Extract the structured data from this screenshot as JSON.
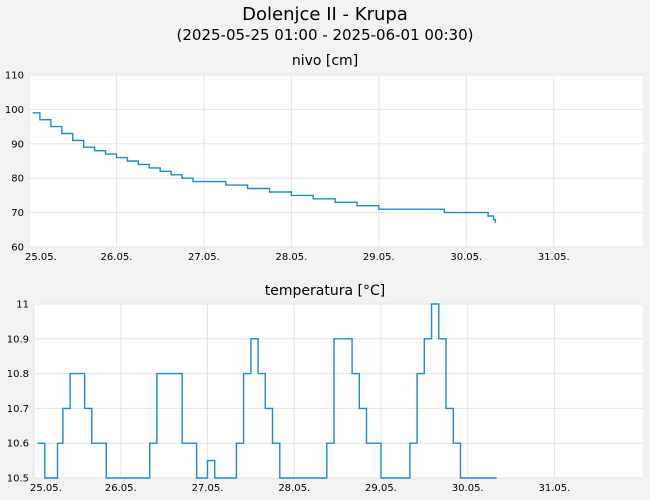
{
  "header": {
    "title": "Dolenjce II - Krupa",
    "subtitle": "(2025-05-25 01:00 - 2025-06-01 00:30)"
  },
  "colors": {
    "line": "#1a8ad4",
    "background": "#f2f2f2",
    "plot_background": "#ffffff",
    "grid": "#e6e6e6"
  },
  "chart_data": [
    {
      "type": "line",
      "title": "nivo [cm]",
      "xlabel": "",
      "ylabel": "",
      "x_range": [
        "2025-05-25 00:00",
        "2025-06-01 00:30"
      ],
      "ylim": [
        60,
        110
      ],
      "yticks": [
        "60",
        "70",
        "80",
        "90",
        "100",
        "110"
      ],
      "xticks": [
        "25.05.",
        "26.05.",
        "27.05.",
        "28.05.",
        "29.05.",
        "30.05.",
        "31.05."
      ],
      "grid": true,
      "series": [
        {
          "x": [
            "2025-05-25 01:00",
            "2025-05-25 03:00",
            "2025-05-25 06:00",
            "2025-05-25 09:00",
            "2025-05-25 12:00",
            "2025-05-25 15:00",
            "2025-05-25 18:00",
            "2025-05-25 21:00",
            "2025-05-26 00:00",
            "2025-05-26 03:00",
            "2025-05-26 06:00",
            "2025-05-26 09:00",
            "2025-05-26 12:00",
            "2025-05-26 15:00",
            "2025-05-26 18:00",
            "2025-05-26 21:00",
            "2025-05-27 00:00",
            "2025-05-27 06:00",
            "2025-05-27 12:00",
            "2025-05-27 18:00",
            "2025-05-28 00:00",
            "2025-05-28 06:00",
            "2025-05-28 12:00",
            "2025-05-28 18:00",
            "2025-05-29 00:00",
            "2025-05-29 06:00",
            "2025-05-29 12:00",
            "2025-05-29 18:00",
            "2025-05-30 00:00",
            "2025-05-30 06:00",
            "2025-05-30 07:30",
            "2025-05-30 08:00"
          ],
          "y": [
            99,
            97,
            95,
            93,
            91,
            89,
            88,
            87,
            86,
            85,
            84,
            83,
            82,
            81,
            80,
            79,
            79,
            78,
            77,
            76,
            75,
            74,
            73,
            72,
            71,
            71,
            71,
            70,
            70,
            69,
            68,
            67
          ]
        }
      ]
    },
    {
      "type": "line",
      "title": "temperatura [°C]",
      "xlabel": "",
      "ylabel": "",
      "x_range": [
        "2025-05-25 00:00",
        "2025-06-01 00:30"
      ],
      "ylim": [
        10.5,
        11
      ],
      "yticks": [
        "10.5",
        "10.6",
        "10.7",
        "10.8",
        "10.9",
        "11"
      ],
      "xticks": [
        "25.05.",
        "26.05.",
        "27.05.",
        "28.05.",
        "29.05.",
        "30.05.",
        "31.05."
      ],
      "grid": true,
      "series": [
        {
          "x": [
            "2025-05-25 01:00",
            "2025-05-25 03:00",
            "2025-05-25 05:00",
            "2025-05-25 06:30",
            "2025-05-25 08:00",
            "2025-05-25 10:00",
            "2025-05-25 12:00",
            "2025-05-25 14:00",
            "2025-05-25 16:00",
            "2025-05-25 18:00",
            "2025-05-25 20:00",
            "2025-05-26 00:00",
            "2025-05-26 06:00",
            "2025-05-26 08:00",
            "2025-05-26 10:00",
            "2025-05-26 15:00",
            "2025-05-26 17:00",
            "2025-05-26 19:00",
            "2025-05-26 21:00",
            "2025-05-27 00:00",
            "2025-05-27 02:00",
            "2025-05-27 04:00",
            "2025-05-27 06:00",
            "2025-05-27 08:00",
            "2025-05-27 10:00",
            "2025-05-27 12:00",
            "2025-05-27 14:00",
            "2025-05-27 16:00",
            "2025-05-27 18:00",
            "2025-05-27 20:00",
            "2025-05-28 00:00",
            "2025-05-28 06:00",
            "2025-05-28 09:00",
            "2025-05-28 11:00",
            "2025-05-28 14:00",
            "2025-05-28 16:00",
            "2025-05-28 18:00",
            "2025-05-28 20:00",
            "2025-05-29 00:00",
            "2025-05-29 06:00",
            "2025-05-29 08:00",
            "2025-05-29 10:00",
            "2025-05-29 12:00",
            "2025-05-29 14:00",
            "2025-05-29 16:00",
            "2025-05-29 18:00",
            "2025-05-29 20:00",
            "2025-05-29 22:00",
            "2025-05-30 00:00",
            "2025-05-30 08:00"
          ],
          "y": [
            10.6,
            10.5,
            10.5,
            10.6,
            10.7,
            10.8,
            10.8,
            10.7,
            10.6,
            10.6,
            10.5,
            10.5,
            10.5,
            10.6,
            10.8,
            10.8,
            10.6,
            10.6,
            10.5,
            10.55,
            10.5,
            10.5,
            10.5,
            10.6,
            10.8,
            10.9,
            10.8,
            10.7,
            10.6,
            10.5,
            10.5,
            10.5,
            10.6,
            10.9,
            10.9,
            10.8,
            10.7,
            10.6,
            10.5,
            10.5,
            10.6,
            10.8,
            10.9,
            11,
            10.9,
            10.7,
            10.6,
            10.5,
            10.5,
            10.5
          ]
        }
      ]
    }
  ]
}
